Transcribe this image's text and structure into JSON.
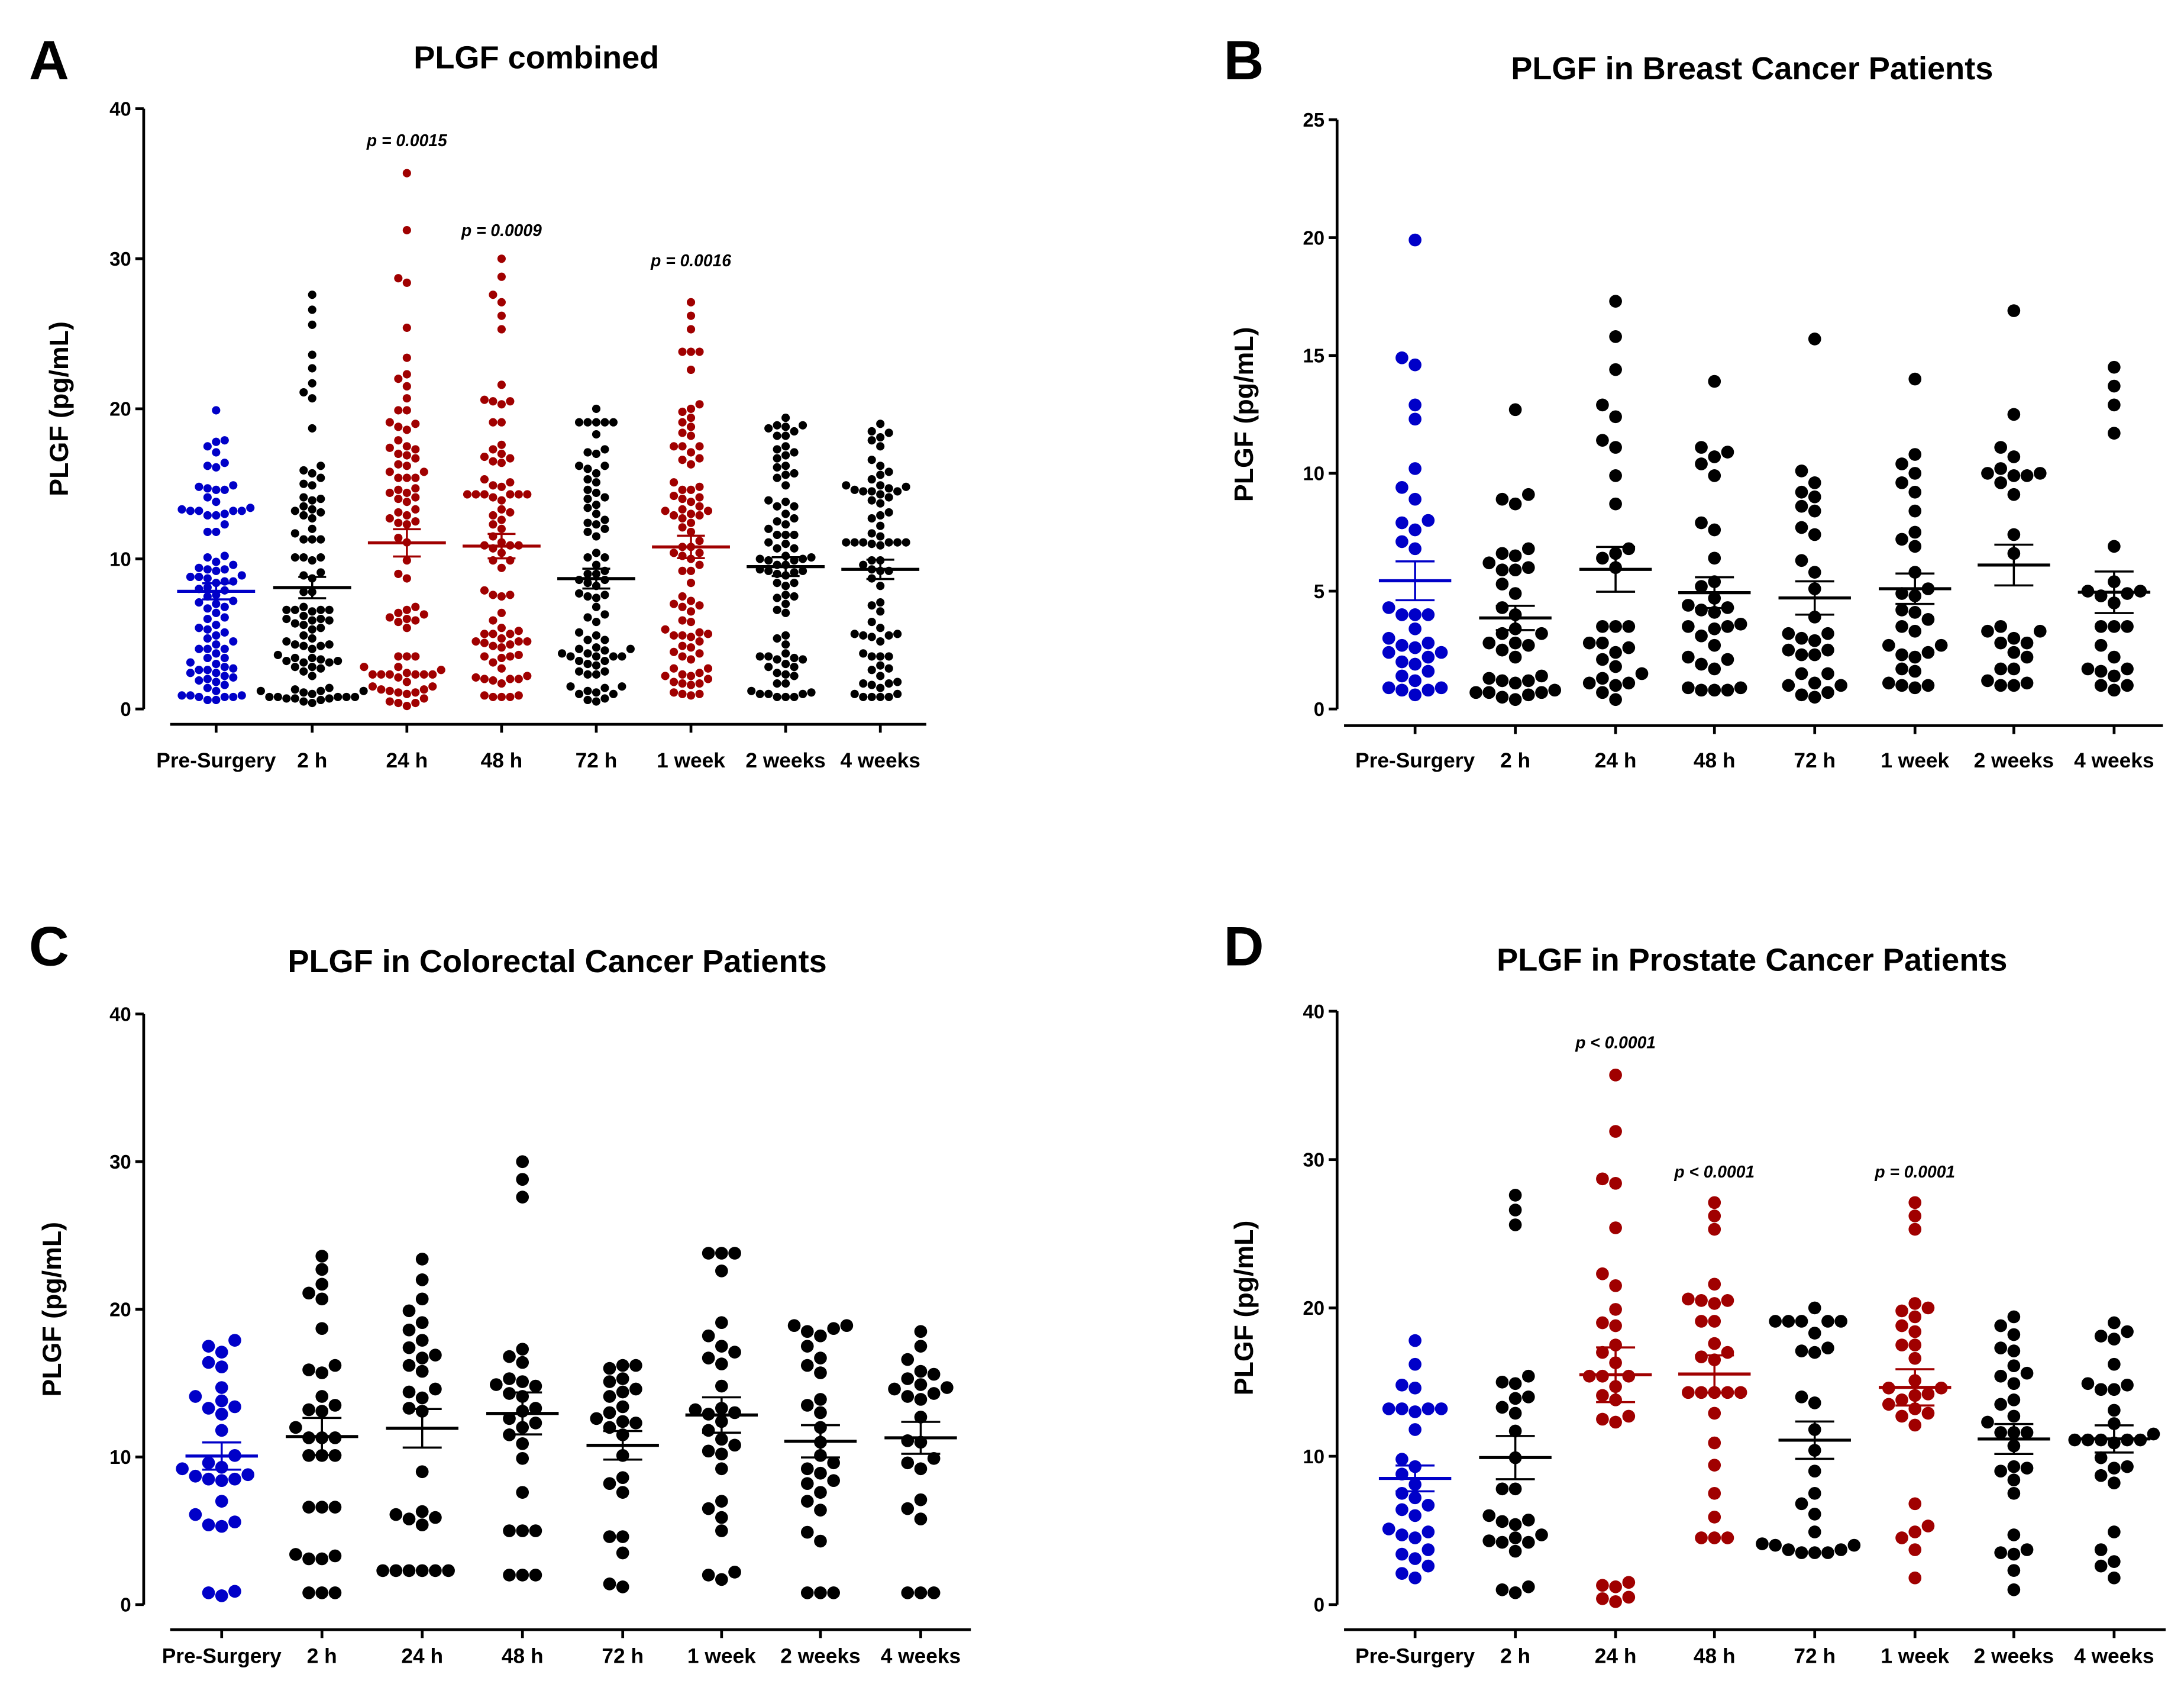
{
  "colors": {
    "baseline": "#0000c8",
    "significant": "#a00000",
    "default": "#000000"
  },
  "chart_data": [
    {
      "id": "A",
      "type": "scatter",
      "panel_letter": "A",
      "title": "PLGF combined",
      "xlabel": "",
      "ylabel": "PLGF (pg/mL)",
      "ylim": [
        0,
        40
      ],
      "yticks": [
        "0",
        "10",
        "20",
        "30",
        "40"
      ],
      "categories": [
        "Pre-Surgery",
        "2 h",
        "24 h",
        "48 h",
        "72 h",
        "1 week",
        "2 weeks",
        "4 weeks"
      ],
      "summary": "mean ± SEM",
      "combined_from": [
        "B",
        "C",
        "D"
      ],
      "group_colors": [
        "baseline",
        "default",
        "significant",
        "significant",
        "default",
        "significant",
        "default",
        "default"
      ],
      "annotations": [
        {
          "category": "24 h",
          "text": "p = 0.0015",
          "y": 37.5
        },
        {
          "category": "48 h",
          "text": "p = 0.0009",
          "y": 31.5
        },
        {
          "category": "1 week",
          "text": "p = 0.0016",
          "y": 29.5
        }
      ]
    },
    {
      "id": "B",
      "type": "scatter",
      "panel_letter": "B",
      "title": "PLGF in Breast Cancer Patients",
      "xlabel": "",
      "ylabel": "PLGF (pg/mL)",
      "ylim": [
        0,
        25
      ],
      "yticks": [
        "0",
        "5",
        "10",
        "15",
        "20",
        "25"
      ],
      "categories": [
        "Pre-Surgery",
        "2 h",
        "24 h",
        "48 h",
        "72 h",
        "1 week",
        "2 weeks",
        "4 weeks"
      ],
      "summary": "mean ± SEM",
      "group_colors": [
        "baseline",
        "default",
        "default",
        "default",
        "default",
        "default",
        "default",
        "default"
      ],
      "annotations": [],
      "series": [
        {
          "name": "Pre-Surgery",
          "values": [
            19.9,
            14.9,
            14.6,
            12.9,
            12.3,
            10.2,
            9.4,
            8.9,
            8.0,
            7.6,
            7.9,
            7.1,
            6.8,
            4.3,
            4.0,
            4.0,
            4.0,
            3.4,
            3.0,
            2.6,
            2.8,
            2.7,
            2.4,
            2.2,
            2.4,
            2.0,
            1.9,
            1.6,
            1.2,
            1.4,
            0.8,
            0.9,
            0.8,
            0.9,
            0.6
          ]
        },
        {
          "name": "2 h",
          "values": [
            12.7,
            9.1,
            8.9,
            8.7,
            6.8,
            6.5,
            6.6,
            6.2,
            6.0,
            5.9,
            5.9,
            5.3,
            4.9,
            4.3,
            4.0,
            3.4,
            3.2,
            3.2,
            2.8,
            2.7,
            2.8,
            2.5,
            2.2,
            1.2,
            1.1,
            1.3,
            1.4,
            1.2,
            0.7,
            0.7,
            0.8,
            0.6,
            0.4,
            0.5,
            0.7
          ]
        },
        {
          "name": "24 h",
          "values": [
            17.3,
            15.8,
            14.4,
            12.9,
            12.4,
            11.4,
            11.1,
            9.9,
            8.7,
            6.8,
            6.4,
            6.6,
            6.0,
            3.5,
            3.5,
            3.5,
            2.8,
            2.8,
            2.6,
            2.1,
            2.4,
            1.8,
            1.5,
            1.0,
            1.1,
            1.1,
            1.3,
            0.7,
            0.4
          ]
        },
        {
          "name": "48 h",
          "values": [
            13.9,
            11.1,
            10.9,
            10.7,
            10.4,
            9.9,
            7.9,
            7.6,
            6.4,
            5.4,
            5.2,
            4.7,
            4.4,
            4.1,
            4.3,
            4.2,
            3.5,
            3.6,
            3.4,
            3.1,
            3.5,
            2.7,
            2.1,
            1.9,
            2.2,
            1.7,
            0.9,
            0.8,
            0.9,
            0.8,
            0.8
          ]
        },
        {
          "name": "72 h",
          "values": [
            15.7,
            10.1,
            9.6,
            9.2,
            9.0,
            8.6,
            8.4,
            7.7,
            7.4,
            6.3,
            5.8,
            5.1,
            3.9,
            3.2,
            2.9,
            3.2,
            3.0,
            2.3,
            2.5,
            2.5,
            2.3,
            1.5,
            1.5,
            1.0,
            1.1,
            1.0,
            0.7,
            0.6,
            0.5
          ]
        },
        {
          "name": "1 week",
          "values": [
            14.0,
            10.8,
            10.4,
            10.0,
            9.6,
            9.2,
            8.4,
            7.5,
            7.2,
            6.9,
            5.8,
            5.1,
            4.8,
            4.9,
            4.1,
            4.2,
            3.8,
            3.5,
            3.3,
            2.7,
            2.7,
            2.4,
            2.3,
            2.2,
            1.7,
            1.6,
            1.1,
            1.0,
            1.0,
            0.9
          ]
        },
        {
          "name": "2 weeks",
          "values": [
            16.9,
            12.5,
            11.1,
            10.7,
            10.2,
            10.0,
            9.9,
            9.9,
            10.0,
            9.6,
            9.1,
            7.4,
            6.6,
            3.3,
            3.5,
            3.3,
            3.0,
            2.4,
            2.8,
            2.8,
            2.2,
            1.7,
            1.7,
            1.2,
            1.1,
            1.0,
            1.0
          ]
        },
        {
          "name": "4 weeks",
          "values": [
            14.5,
            13.7,
            12.9,
            11.7,
            6.9,
            5.4,
            5.0,
            4.8,
            5.0,
            4.9,
            4.5,
            3.5,
            3.5,
            3.5,
            2.7,
            2.2,
            1.7,
            1.6,
            1.7,
            1.4,
            0.8,
            1.0,
            1.0
          ]
        }
      ]
    },
    {
      "id": "C",
      "type": "scatter",
      "panel_letter": "C",
      "title": "PLGF in Colorectal Cancer Patients",
      "xlabel": "",
      "ylabel": "PLGF (pg/mL)",
      "ylim": [
        0,
        40
      ],
      "yticks": [
        "0",
        "10",
        "20",
        "30",
        "40"
      ],
      "categories": [
        "Pre-Surgery",
        "2 h",
        "24 h",
        "48 h",
        "72 h",
        "1 week",
        "2 weeks",
        "4 weeks"
      ],
      "summary": "mean ± SEM",
      "group_colors": [
        "baseline",
        "default",
        "default",
        "default",
        "default",
        "default",
        "default",
        "default"
      ],
      "annotations": [],
      "series": [
        {
          "name": "Pre-Surgery",
          "values": [
            17.9,
            17.5,
            17.1,
            16.4,
            16.1,
            14.7,
            14.1,
            13.8,
            13.4,
            13.3,
            12.9,
            11.8,
            10.1,
            9.6,
            9.3,
            9.2,
            8.8,
            8.7,
            8.5,
            8.5,
            8.4,
            7.0,
            6.1,
            5.6,
            5.4,
            5.3,
            0.9,
            0.8,
            0.6
          ]
        },
        {
          "name": "2 h",
          "values": [
            23.6,
            22.7,
            21.7,
            21.1,
            20.7,
            18.7,
            16.2,
            15.9,
            15.7,
            14.1,
            13.5,
            13.2,
            13.1,
            12.0,
            11.3,
            11.3,
            11.3,
            10.1,
            10.1,
            10.1,
            6.6,
            6.6,
            6.6,
            3.4,
            3.1,
            3.3,
            3.1,
            0.8,
            0.8,
            0.8
          ]
        },
        {
          "name": "24 h",
          "values": [
            23.4,
            22.0,
            20.7,
            19.9,
            19.1,
            18.6,
            17.9,
            17.4,
            16.9,
            16.7,
            16.2,
            15.8,
            14.6,
            14.4,
            14.0,
            13.3,
            13.1,
            9.0,
            6.1,
            5.8,
            5.4,
            5.9,
            6.3,
            2.3,
            2.3,
            2.3,
            2.3,
            2.3,
            2.3
          ]
        },
        {
          "name": "48 h",
          "values": [
            30.0,
            28.8,
            27.6,
            17.3,
            16.8,
            16.4,
            15.3,
            15.1,
            14.9,
            14.8,
            14.3,
            14.1,
            13.3,
            13.1,
            12.6,
            12.3,
            12.0,
            11.5,
            10.9,
            9.9,
            7.6,
            5.0,
            5.0,
            5.0,
            2.0,
            2.0,
            2.0
          ]
        },
        {
          "name": "72 h",
          "values": [
            16.2,
            16.2,
            16.0,
            15.3,
            15.1,
            14.6,
            14.4,
            14.1,
            13.4,
            13.0,
            12.6,
            12.4,
            12.3,
            12.0,
            11.5,
            10.1,
            8.6,
            8.2,
            7.6,
            4.6,
            4.6,
            3.5,
            1.4,
            1.2
          ]
        },
        {
          "name": "1 week",
          "values": [
            23.8,
            23.8,
            23.8,
            22.6,
            19.1,
            18.2,
            17.5,
            17.1,
            16.7,
            16.3,
            14.8,
            13.3,
            13.2,
            13.0,
            12.9,
            12.4,
            11.8,
            11.2,
            10.8,
            10.4,
            10.2,
            9.2,
            7.0,
            6.5,
            5.9,
            5.0,
            2.2,
            2.0,
            1.7
          ]
        },
        {
          "name": "2 weeks",
          "values": [
            18.9,
            18.9,
            18.7,
            18.5,
            18.2,
            17.5,
            16.7,
            16.2,
            15.7,
            13.9,
            13.5,
            13.0,
            12.0,
            11.0,
            10.1,
            9.6,
            9.2,
            8.9,
            8.4,
            8.2,
            7.6,
            7.0,
            6.4,
            4.9,
            4.3,
            0.8,
            0.8,
            0.8
          ]
        },
        {
          "name": "4 weeks",
          "values": [
            18.5,
            17.5,
            16.6,
            15.8,
            15.6,
            15.3,
            14.9,
            14.7,
            14.6,
            14.3,
            14.1,
            13.9,
            12.7,
            11.1,
            11.0,
            9.9,
            9.6,
            9.2,
            7.1,
            6.5,
            5.8,
            0.8,
            0.8,
            0.8
          ]
        }
      ]
    },
    {
      "id": "D",
      "type": "scatter",
      "panel_letter": "D",
      "title": "PLGF in Prostate Cancer Patients",
      "xlabel": "",
      "ylabel": "PLGF (pg/mL)",
      "ylim": [
        0,
        40
      ],
      "yticks": [
        "0",
        "10",
        "20",
        "30",
        "40"
      ],
      "categories": [
        "Pre-Surgery",
        "2 h",
        "24 h",
        "48 h",
        "72 h",
        "1 week",
        "2 weeks",
        "4 weeks"
      ],
      "summary": "mean ± SEM",
      "group_colors": [
        "baseline",
        "default",
        "significant",
        "significant",
        "default",
        "significant",
        "default",
        "default"
      ],
      "annotations": [
        {
          "category": "24 h",
          "text": "p < 0.0001",
          "y": 37.5
        },
        {
          "category": "48 h",
          "text": "p < 0.0001",
          "y": 28.8
        },
        {
          "category": "1 week",
          "text": "p = 0.0001",
          "y": 28.8
        }
      ],
      "series": [
        {
          "name": "Pre-Surgery",
          "values": [
            17.8,
            16.2,
            14.8,
            14.6,
            13.2,
            13.2,
            13.2,
            13.2,
            13.0,
            11.8,
            9.8,
            9.3,
            8.8,
            8.1,
            7.5,
            7.2,
            6.7,
            6.4,
            6.0,
            5.1,
            4.9,
            4.7,
            4.5,
            3.7,
            3.4,
            3.1,
            2.6,
            2.1,
            1.8
          ]
        },
        {
          "name": "2 h",
          "values": [
            27.6,
            26.6,
            25.6,
            15.4,
            15.0,
            14.9,
            13.9,
            14.0,
            13.3,
            12.9,
            11.7,
            9.9,
            7.8,
            7.8,
            6.0,
            5.7,
            5.6,
            5.4,
            4.7,
            4.5,
            4.3,
            4.2,
            4.2,
            3.6,
            1.0,
            0.8,
            1.2
          ]
        },
        {
          "name": "24 h",
          "values": [
            35.7,
            31.9,
            28.7,
            28.4,
            25.4,
            22.3,
            21.5,
            19.9,
            18.8,
            19.0,
            17.5,
            17.0,
            16.3,
            15.4,
            15.4,
            15.4,
            14.7,
            14.1,
            13.8,
            12.7,
            12.5,
            12.3,
            1.5,
            1.3,
            1.2,
            0.5,
            0.2,
            0.4
          ]
        },
        {
          "name": "48 h",
          "values": [
            27.1,
            26.2,
            25.3,
            21.6,
            20.6,
            20.5,
            20.5,
            20.3,
            19.1,
            19.1,
            17.6,
            17.0,
            16.7,
            16.5,
            14.3,
            14.3,
            14.3,
            14.3,
            14.3,
            12.9,
            10.9,
            9.4,
            7.5,
            5.9,
            4.5,
            4.5,
            4.5
          ]
        },
        {
          "name": "72 h",
          "values": [
            20.0,
            19.1,
            19.1,
            19.1,
            19.1,
            19.1,
            18.3,
            17.3,
            17.1,
            17.0,
            14.0,
            13.6,
            11.8,
            10.4,
            9.0,
            7.5,
            6.8,
            6.1,
            4.9,
            4.1,
            4.0,
            4.0,
            3.7,
            3.7,
            3.5,
            3.5,
            3.5
          ]
        },
        {
          "name": "1 week",
          "values": [
            27.1,
            26.2,
            25.3,
            20.3,
            20.0,
            19.8,
            19.4,
            18.8,
            18.4,
            17.5,
            17.5,
            16.6,
            15.1,
            14.6,
            14.6,
            14.2,
            14.1,
            13.8,
            13.5,
            13.2,
            12.9,
            12.7,
            12.1,
            6.8,
            5.3,
            4.9,
            4.5,
            3.7,
            1.8
          ]
        },
        {
          "name": "2 weeks",
          "values": [
            19.4,
            18.8,
            18.2,
            17.3,
            17.1,
            16.1,
            15.6,
            15.4,
            14.9,
            13.8,
            13.5,
            12.7,
            12.3,
            11.6,
            11.6,
            11.6,
            10.7,
            9.3,
            9.2,
            9.0,
            8.4,
            7.5,
            4.7,
            3.7,
            3.5,
            3.4,
            2.3,
            1.0
          ]
        },
        {
          "name": "4 weeks",
          "values": [
            19.0,
            18.4,
            18.1,
            17.9,
            16.2,
            14.8,
            14.9,
            14.5,
            14.5,
            13.1,
            12.2,
            11.5,
            11.1,
            11.1,
            11.1,
            11.1,
            11.1,
            10.9,
            9.9,
            9.3,
            9.2,
            8.7,
            8.2,
            4.9,
            3.7,
            2.9,
            2.6,
            1.8
          ]
        }
      ]
    }
  ]
}
